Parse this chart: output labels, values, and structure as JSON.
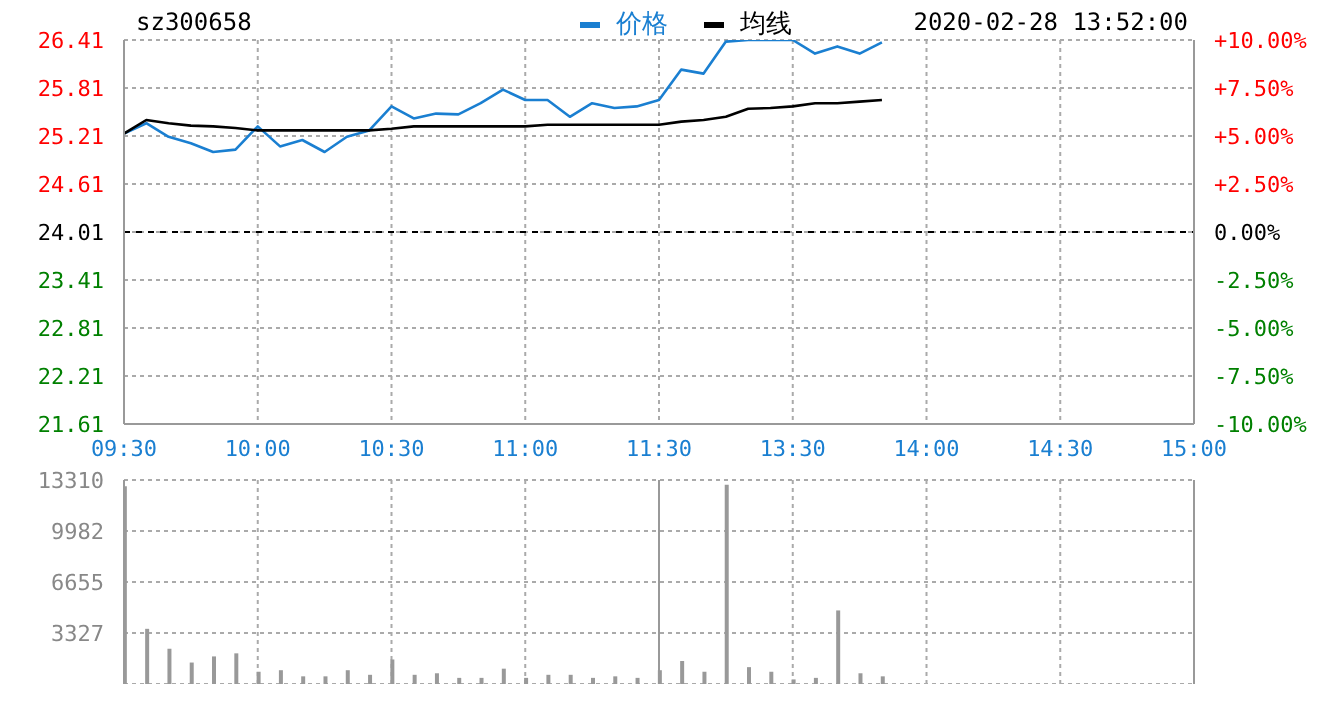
{
  "chart_data": [
    {
      "type": "line",
      "title": "sz300658",
      "subtitle": "2020-02-28 13:52:00",
      "categories": [
        "09:30",
        null,
        null,
        null,
        null,
        null,
        "10:00",
        null,
        null,
        null,
        null,
        null,
        "10:30",
        null,
        null,
        null,
        null,
        null,
        "11:00",
        null,
        null,
        null,
        null,
        null,
        "11:30",
        null,
        null,
        null,
        null,
        null,
        "13:30",
        null,
        null,
        null,
        null,
        null,
        "14:00",
        null,
        null,
        null,
        null,
        null,
        "14:30",
        null,
        null,
        null,
        null,
        null,
        "15:00"
      ],
      "series": [
        {
          "name": "价格",
          "color": "#1a7fd1",
          "values": [
            25.24,
            25.37,
            25.2,
            25.12,
            25.01,
            25.04,
            25.33,
            25.08,
            25.16,
            25.01,
            25.2,
            25.28,
            25.58,
            25.43,
            25.49,
            25.48,
            25.62,
            25.79,
            25.66,
            25.66,
            25.45,
            25.62,
            25.56,
            25.58,
            25.66,
            26.04,
            25.99,
            26.39,
            26.41,
            26.41,
            26.41,
            26.24,
            26.33,
            26.24,
            26.38,
            null,
            null,
            null,
            null,
            null,
            null,
            null,
            null,
            null,
            null,
            null,
            null,
            null,
            null
          ]
        },
        {
          "name": "均线",
          "color": "#000000",
          "values": [
            25.24,
            25.41,
            25.37,
            25.34,
            25.33,
            25.31,
            25.28,
            25.28,
            25.28,
            25.28,
            25.28,
            25.28,
            25.3,
            25.33,
            25.33,
            25.33,
            25.33,
            25.33,
            25.33,
            25.35,
            25.35,
            25.35,
            25.35,
            25.35,
            25.35,
            25.39,
            25.41,
            25.45,
            25.55,
            25.56,
            25.58,
            25.62,
            25.62,
            25.64,
            25.66,
            null,
            null,
            null,
            null,
            null,
            null,
            null,
            null,
            null,
            null,
            null,
            null,
            null,
            null
          ]
        }
      ],
      "ylim": [
        21.61,
        26.41
      ],
      "yticks": [
        21.61,
        22.21,
        22.81,
        23.41,
        24.01,
        24.61,
        25.21,
        25.81,
        26.41
      ],
      "y2lim": [
        -10,
        10
      ],
      "y2ticks": [
        {
          "value": -10,
          "label": "-10.00%"
        },
        {
          "value": -7.5,
          "label": "-7.50%"
        },
        {
          "value": -5,
          "label": "-5.00%"
        },
        {
          "value": -2.5,
          "label": "-2.50%"
        },
        {
          "value": 0,
          "label": "0.00%"
        },
        {
          "value": 2.5,
          "label": "+2.50%"
        },
        {
          "value": 5,
          "label": "+5.00%"
        },
        {
          "value": 7.5,
          "label": "+7.50%"
        },
        {
          "value": 10,
          "label": "+10.00%"
        }
      ],
      "ref_lines": [
        {
          "axis": "y",
          "value": 24.01,
          "color": "#000000",
          "line_style": "dashed"
        }
      ],
      "grid": true,
      "legend": "top",
      "line_style": "solid"
    },
    {
      "type": "bar",
      "categories": [
        "09:30",
        null,
        null,
        null,
        null,
        null,
        "10:00",
        null,
        null,
        null,
        null,
        null,
        "10:30",
        null,
        null,
        null,
        null,
        null,
        "11:00",
        null,
        null,
        null,
        null,
        null,
        "11:30",
        null,
        null,
        null,
        null,
        null,
        "13:30",
        null,
        null,
        null,
        null,
        null,
        "14:00",
        null,
        null,
        null,
        null,
        null,
        "14:30",
        null,
        null,
        null,
        null,
        null,
        "15:00"
      ],
      "values": [
        12900,
        3600,
        2300,
        1400,
        1800,
        2000,
        800,
        900,
        500,
        500,
        900,
        600,
        1600,
        600,
        700,
        400,
        400,
        1000,
        400,
        600,
        600,
        400,
        500,
        400,
        900,
        1500,
        800,
        13000,
        1100,
        800,
        300,
        400,
        4800,
        700,
        500,
        null,
        null,
        null,
        null,
        null,
        null,
        null,
        null,
        null,
        null,
        null,
        null,
        null,
        null
      ],
      "color": "#999999",
      "ylim": [
        0,
        13310
      ],
      "yticks": [
        3327,
        6655,
        9982,
        13310
      ],
      "ref_lines": [
        {
          "axis": "x",
          "value": "11:30",
          "color": "#999999",
          "line_style": "solid"
        }
      ],
      "grid": true,
      "tick_labels": "y"
    }
  ]
}
